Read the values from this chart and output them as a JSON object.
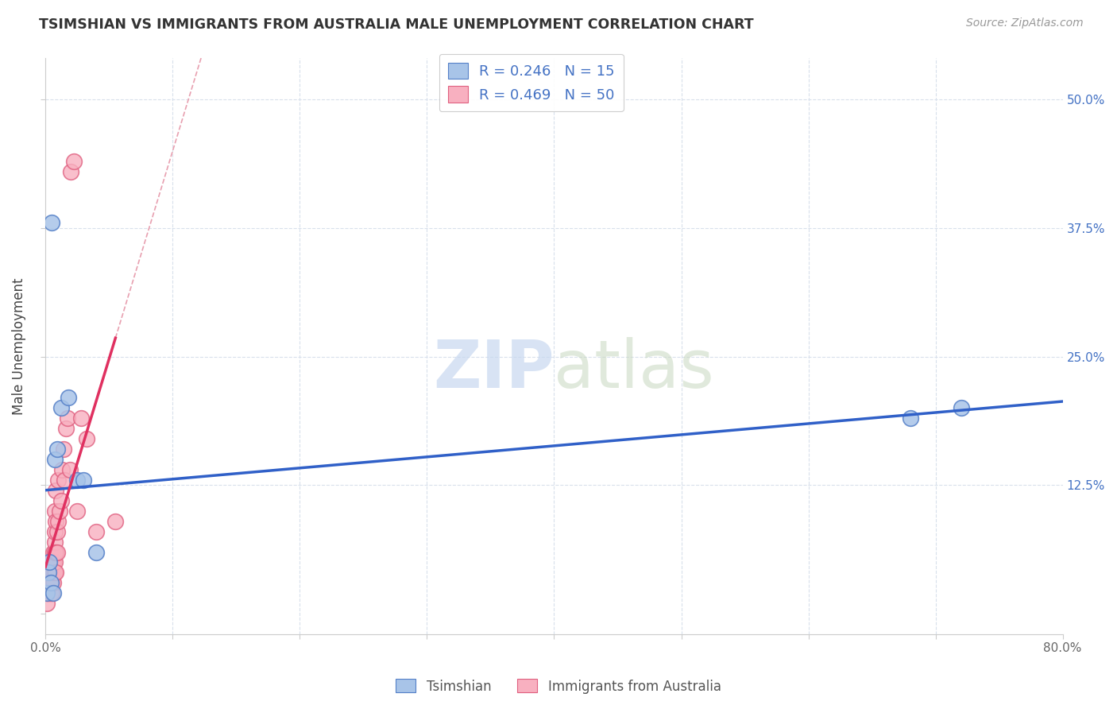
{
  "title": "TSIMSHIAN VS IMMIGRANTS FROM AUSTRALIA MALE UNEMPLOYMENT CORRELATION CHART",
  "source": "Source: ZipAtlas.com",
  "ylabel": "Male Unemployment",
  "legend_blue_R": "0.246",
  "legend_blue_N": "15",
  "legend_pink_R": "0.469",
  "legend_pink_N": "50",
  "legend_label_blue": "Tsimshian",
  "legend_label_pink": "Immigrants from Australia",
  "blue_scatter_face": "#a8c4e8",
  "blue_scatter_edge": "#5580c8",
  "pink_scatter_face": "#f8b0c0",
  "pink_scatter_edge": "#e06080",
  "blue_line_color": "#3060c8",
  "pink_line_color": "#e03060",
  "diag_line_color": "#e8a0b0",
  "watermark_zip_color": "#c8d8f0",
  "watermark_atlas_color": "#c8d8c0",
  "xlim": [
    0.0,
    0.8
  ],
  "ylim": [
    -0.02,
    0.54
  ],
  "xticks": [
    0.0,
    0.1,
    0.2,
    0.3,
    0.4,
    0.5,
    0.6,
    0.7,
    0.8
  ],
  "yticks": [
    0.0,
    0.125,
    0.25,
    0.375,
    0.5
  ],
  "ytick_labels_right": [
    "",
    "12.5%",
    "25.0%",
    "37.5%",
    "50.0%"
  ],
  "tsimshian_x": [
    0.001,
    0.002,
    0.003,
    0.004,
    0.005,
    0.006,
    0.007,
    0.009,
    0.012,
    0.018,
    0.025,
    0.03,
    0.04,
    0.68,
    0.72
  ],
  "tsimshian_y": [
    0.02,
    0.04,
    0.05,
    0.03,
    0.38,
    0.02,
    0.15,
    0.16,
    0.2,
    0.21,
    0.13,
    0.13,
    0.06,
    0.19,
    0.2
  ],
  "australia_x": [
    0.001,
    0.001,
    0.001,
    0.002,
    0.002,
    0.002,
    0.003,
    0.003,
    0.003,
    0.003,
    0.004,
    0.004,
    0.004,
    0.005,
    0.005,
    0.005,
    0.005,
    0.006,
    0.006,
    0.006,
    0.006,
    0.007,
    0.007,
    0.007,
    0.007,
    0.007,
    0.007,
    0.008,
    0.008,
    0.008,
    0.008,
    0.009,
    0.009,
    0.01,
    0.01,
    0.011,
    0.012,
    0.013,
    0.014,
    0.015,
    0.016,
    0.017,
    0.019,
    0.02,
    0.022,
    0.025,
    0.028,
    0.032,
    0.04,
    0.055
  ],
  "australia_y": [
    0.01,
    0.02,
    0.03,
    0.02,
    0.03,
    0.04,
    0.02,
    0.03,
    0.04,
    0.05,
    0.02,
    0.03,
    0.04,
    0.02,
    0.03,
    0.04,
    0.05,
    0.03,
    0.04,
    0.05,
    0.06,
    0.04,
    0.05,
    0.06,
    0.07,
    0.08,
    0.1,
    0.04,
    0.06,
    0.09,
    0.12,
    0.06,
    0.08,
    0.09,
    0.13,
    0.1,
    0.11,
    0.14,
    0.16,
    0.13,
    0.18,
    0.19,
    0.14,
    0.43,
    0.44,
    0.1,
    0.19,
    0.17,
    0.08,
    0.09
  ]
}
